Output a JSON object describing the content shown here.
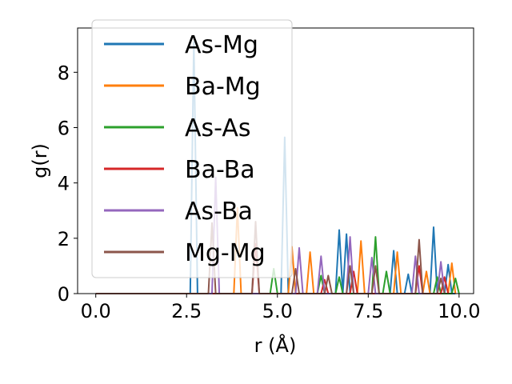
{
  "chart_data": {
    "type": "line",
    "title": "",
    "xlabel": "r (Å)",
    "ylabel": "g(r)",
    "xlim": [
      -0.5,
      10.4
    ],
    "ylim": [
      0,
      9.6
    ],
    "xticks": [
      0.0,
      2.5,
      5.0,
      7.5,
      10.0
    ],
    "xtick_labels": [
      "0.0",
      "2.5",
      "5.0",
      "7.5",
      "10.0"
    ],
    "yticks": [
      0,
      2,
      4,
      6,
      8
    ],
    "ytick_labels": [
      "0",
      "2",
      "4",
      "6",
      "8"
    ],
    "grid": false,
    "legend_position": "upper-left",
    "series": [
      {
        "name": "As-Mg",
        "color": "#1f77b4",
        "x": [
          0,
          2.6,
          2.7,
          2.8,
          5.1,
          5.2,
          5.3,
          6.6,
          6.7,
          6.8,
          6.9,
          7.0,
          7.1,
          8.1,
          8.2,
          8.3,
          8.5,
          8.6,
          8.7,
          9.2,
          9.3,
          9.4,
          9.6,
          9.7,
          9.8,
          9.9
        ],
        "y": [
          0,
          0,
          9.1,
          0,
          0,
          5.65,
          0,
          0,
          2.3,
          0,
          2.15,
          0,
          0,
          0,
          1.55,
          0,
          0,
          0.7,
          0,
          0,
          2.4,
          0,
          0,
          1.05,
          0,
          0
        ]
      },
      {
        "name": "Ba-Mg",
        "color": "#ff7f0e",
        "x": [
          0,
          3.8,
          3.9,
          4.0,
          5.3,
          5.4,
          5.5,
          5.8,
          5.9,
          6.0,
          7.2,
          7.3,
          7.4,
          8.2,
          8.3,
          8.4,
          9.0,
          9.1,
          9.2,
          9.7,
          9.8,
          9.9
        ],
        "y": [
          0,
          0,
          3.1,
          0,
          0,
          1.7,
          0,
          0,
          1.5,
          0,
          0,
          1.9,
          0,
          0,
          1.5,
          0,
          0,
          0.8,
          0,
          0,
          1.1,
          0
        ]
      },
      {
        "name": "As-As",
        "color": "#2ca02c",
        "x": [
          0,
          4.8,
          4.9,
          5.0,
          6.1,
          6.2,
          6.3,
          6.6,
          6.7,
          6.8,
          7.6,
          7.7,
          7.8,
          7.9,
          8.0,
          8.1,
          9.3,
          9.4,
          9.5,
          9.8,
          9.9,
          10.0
        ],
        "y": [
          0,
          0,
          0.9,
          0,
          0,
          0.65,
          0,
          0,
          0.6,
          0,
          0,
          2.05,
          0,
          0,
          0.8,
          0,
          0,
          0.6,
          0,
          0,
          0.55,
          0
        ]
      },
      {
        "name": "Ba-Ba",
        "color": "#d62728",
        "x": [
          0,
          4.3,
          4.4,
          4.5,
          6.2,
          6.3,
          6.4,
          7.0,
          7.1,
          7.2,
          8.8,
          8.9,
          9.0,
          9.5,
          9.6,
          9.7
        ],
        "y": [
          0,
          0,
          1.8,
          0,
          0,
          0.5,
          0,
          0,
          0.8,
          0,
          0,
          1.0,
          0,
          0,
          0.6,
          0
        ]
      },
      {
        "name": "As-Ba",
        "color": "#9467bd",
        "x": [
          0,
          3.2,
          3.3,
          3.4,
          5.5,
          5.6,
          5.7,
          6.1,
          6.2,
          6.3,
          6.9,
          7.0,
          7.1,
          7.5,
          7.6,
          7.7,
          8.7,
          8.8,
          8.9,
          9.4,
          9.5,
          9.6
        ],
        "y": [
          0,
          0,
          4.2,
          0,
          0,
          1.65,
          0,
          0,
          1.35,
          0,
          0,
          2.05,
          0,
          0,
          1.3,
          0,
          0,
          1.35,
          0,
          0,
          1.15,
          0
        ]
      },
      {
        "name": "Mg-Mg",
        "color": "#8c564b",
        "x": [
          0,
          3.1,
          3.2,
          3.3,
          4.3,
          4.4,
          4.5,
          5.4,
          5.5,
          5.6,
          6.3,
          6.4,
          6.5,
          6.9,
          7.0,
          7.1,
          7.6,
          7.7,
          7.8,
          8.8,
          8.9,
          9.0,
          9.4,
          9.5,
          9.6
        ],
        "y": [
          0,
          0,
          2.55,
          0,
          0,
          2.6,
          0,
          0,
          0.9,
          0,
          0,
          0.65,
          0,
          0,
          1.0,
          0,
          0,
          1.0,
          0,
          0,
          1.95,
          0,
          0,
          0.55,
          0
        ]
      }
    ]
  }
}
